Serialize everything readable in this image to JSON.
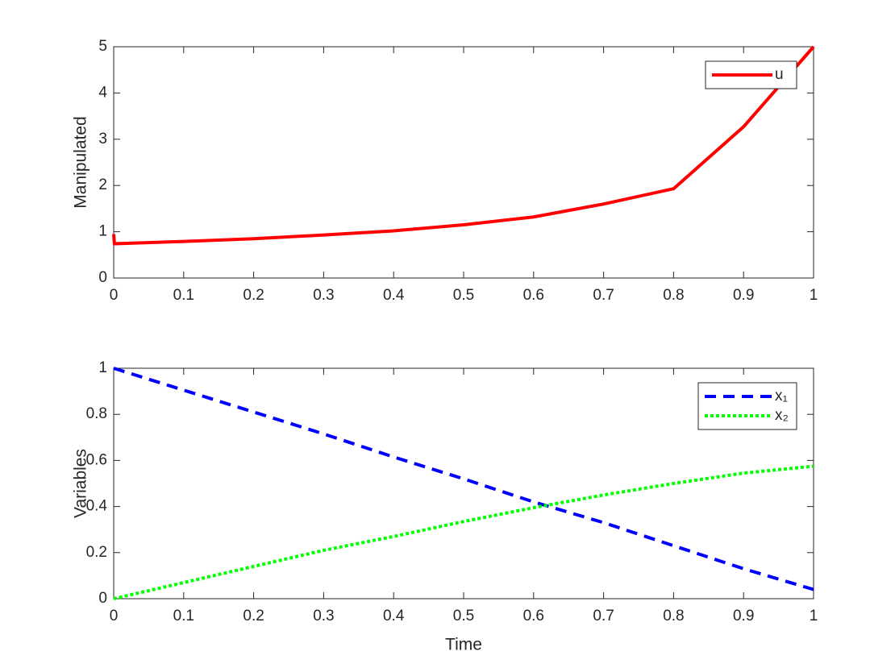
{
  "chart_data": [
    {
      "type": "line",
      "ylabel": "Manipulated",
      "x": [
        0,
        0.001,
        0.1,
        0.2,
        0.3,
        0.4,
        0.5,
        0.6,
        0.7,
        0.8,
        0.9,
        1
      ],
      "series": [
        {
          "name": "u",
          "color": "#ff0000",
          "style": "solid",
          "values": [
            0.95,
            0.74,
            0.79,
            0.85,
            0.93,
            1.02,
            1.15,
            1.32,
            1.6,
            1.93,
            3.27,
            5.0
          ]
        }
      ],
      "xlim": [
        0,
        1
      ],
      "xticks": [
        0,
        0.1,
        0.2,
        0.3,
        0.4,
        0.5,
        0.6,
        0.7,
        0.8,
        0.9,
        1
      ],
      "ylim": [
        0,
        5
      ],
      "yticks": [
        0,
        1,
        2,
        3,
        4,
        5
      ],
      "legend": "northeast"
    },
    {
      "type": "line",
      "xlabel": "Time",
      "ylabel": "Variables",
      "x": [
        0,
        0.1,
        0.2,
        0.3,
        0.4,
        0.5,
        0.6,
        0.7,
        0.8,
        0.9,
        1
      ],
      "series": [
        {
          "name": "x₁",
          "color": "#0000ff",
          "style": "dashed",
          "values": [
            1,
            0.905,
            0.81,
            0.715,
            0.615,
            0.52,
            0.42,
            0.33,
            0.23,
            0.13,
            0.04
          ]
        },
        {
          "name": "x₂",
          "color": "#00ff00",
          "style": "dotted",
          "values": [
            0,
            0.07,
            0.14,
            0.21,
            0.27,
            0.335,
            0.395,
            0.45,
            0.5,
            0.545,
            0.575
          ]
        }
      ],
      "xlim": [
        0,
        1
      ],
      "xticks": [
        0,
        0.1,
        0.2,
        0.3,
        0.4,
        0.5,
        0.6,
        0.7,
        0.8,
        0.9,
        1
      ],
      "ylim": [
        0,
        1
      ],
      "yticks": [
        0,
        0.2,
        0.4,
        0.6,
        0.8,
        1
      ],
      "legend": "northeast"
    }
  ]
}
